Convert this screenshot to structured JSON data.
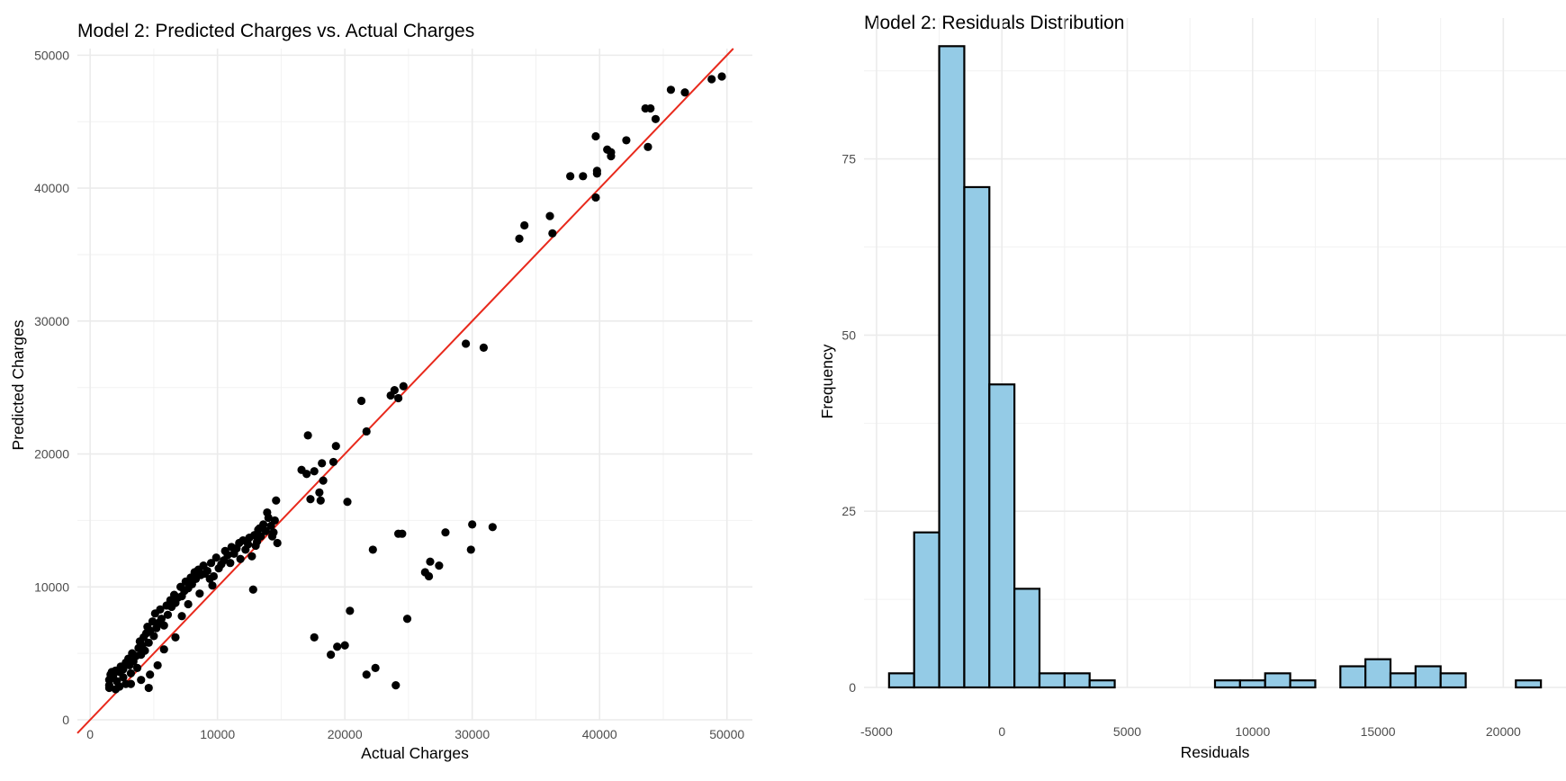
{
  "chart_data": [
    {
      "type": "scatter",
      "title": "Model 2: Predicted Charges vs. Actual Charges",
      "xlabel": "Actual Charges",
      "ylabel": "Predicted Charges",
      "xlim": [
        -1000,
        52000
      ],
      "ylim": [
        0,
        50500
      ],
      "x_ticks": [
        "0",
        "10000",
        "20000",
        "30000",
        "40000",
        "50000"
      ],
      "y_ticks": [
        "0",
        "10000",
        "20000",
        "30000",
        "40000",
        "50000"
      ],
      "grid": true,
      "reference_line": {
        "type": "y = x",
        "color": "#e8291c"
      },
      "point_color": "#000000",
      "points": [
        [
          1700,
          3600
        ],
        [
          1600,
          3400
        ],
        [
          1500,
          3000
        ],
        [
          1500,
          2600
        ],
        [
          1800,
          3300
        ],
        [
          2000,
          3700
        ],
        [
          2100,
          2900
        ],
        [
          2300,
          3600
        ],
        [
          2400,
          4000
        ],
        [
          2600,
          3800
        ],
        [
          2600,
          3200
        ],
        [
          2800,
          4300
        ],
        [
          2800,
          2700
        ],
        [
          3000,
          4600
        ],
        [
          3100,
          4100
        ],
        [
          3200,
          3500
        ],
        [
          3300,
          5000
        ],
        [
          3400,
          4400
        ],
        [
          3600,
          4800
        ],
        [
          3700,
          3900
        ],
        [
          3800,
          5400
        ],
        [
          3900,
          5900
        ],
        [
          4000,
          4900
        ],
        [
          4100,
          5600
        ],
        [
          4200,
          6200
        ],
        [
          4300,
          5200
        ],
        [
          4400,
          6500
        ],
        [
          4500,
          7000
        ],
        [
          4600,
          5800
        ],
        [
          4700,
          6700
        ],
        [
          4900,
          7400
        ],
        [
          5000,
          6300
        ],
        [
          5100,
          8000
        ],
        [
          5200,
          6900
        ],
        [
          5400,
          7300
        ],
        [
          5500,
          8300
        ],
        [
          5600,
          7600
        ],
        [
          5800,
          7100
        ],
        [
          6000,
          8600
        ],
        [
          6100,
          7900
        ],
        [
          6300,
          9000
        ],
        [
          6400,
          8500
        ],
        [
          6600,
          9400
        ],
        [
          6700,
          8800
        ],
        [
          6900,
          9200
        ],
        [
          7100,
          10000
        ],
        [
          7200,
          9300
        ],
        [
          7400,
          9700
        ],
        [
          7500,
          10400
        ],
        [
          7700,
          9900
        ],
        [
          7900,
          10700
        ],
        [
          8000,
          10200
        ],
        [
          8200,
          11100
        ],
        [
          8300,
          10600
        ],
        [
          8500,
          11300
        ],
        [
          8700,
          10900
        ],
        [
          8900,
          11600
        ],
        [
          9000,
          11000
        ],
        [
          9200,
          11200
        ],
        [
          9400,
          10600
        ],
        [
          9500,
          11800
        ],
        [
          9700,
          10800
        ],
        [
          9900,
          12200
        ],
        [
          10100,
          11400
        ],
        [
          10300,
          11700
        ],
        [
          10500,
          12000
        ],
        [
          10600,
          12700
        ],
        [
          10800,
          12400
        ],
        [
          11000,
          11800
        ],
        [
          11100,
          13000
        ],
        [
          11300,
          12500
        ],
        [
          11500,
          12900
        ],
        [
          11700,
          13300
        ],
        [
          11800,
          12100
        ],
        [
          12000,
          13500
        ],
        [
          12200,
          12800
        ],
        [
          12400,
          13200
        ],
        [
          12500,
          13700
        ],
        [
          12700,
          12300
        ],
        [
          12900,
          13900
        ],
        [
          13100,
          13400
        ],
        [
          13200,
          14300
        ],
        [
          13400,
          13800
        ],
        [
          13600,
          14700
        ],
        [
          13800,
          14200
        ],
        [
          14000,
          15200
        ],
        [
          14200,
          14600
        ],
        [
          14400,
          14100
        ],
        [
          14600,
          16500
        ],
        [
          14700,
          13300
        ],
        [
          1500,
          2400
        ],
        [
          2000,
          2300
        ],
        [
          2300,
          2500
        ],
        [
          3200,
          2700
        ],
        [
          4000,
          3000
        ],
        [
          4600,
          2400
        ],
        [
          4700,
          3400
        ],
        [
          5300,
          4100
        ],
        [
          5800,
          5300
        ],
        [
          6700,
          6200
        ],
        [
          7200,
          7800
        ],
        [
          7700,
          8700
        ],
        [
          8600,
          9500
        ],
        [
          9600,
          10100
        ],
        [
          12800,
          9800
        ],
        [
          13300,
          14400
        ],
        [
          13900,
          15600
        ],
        [
          14300,
          13800
        ],
        [
          14500,
          15000
        ],
        [
          13000,
          13100
        ],
        [
          17100,
          21400
        ],
        [
          16600,
          18800
        ],
        [
          17000,
          18500
        ],
        [
          17600,
          18700
        ],
        [
          17300,
          16600
        ],
        [
          18000,
          17100
        ],
        [
          18200,
          19300
        ],
        [
          18300,
          18000
        ],
        [
          18100,
          16500
        ],
        [
          19100,
          19400
        ],
        [
          19300,
          20600
        ],
        [
          20200,
          16400
        ],
        [
          21300,
          24000
        ],
        [
          21700,
          21700
        ],
        [
          23600,
          24400
        ],
        [
          23900,
          24800
        ],
        [
          24200,
          24200
        ],
        [
          24600,
          25100
        ],
        [
          29500,
          28300
        ],
        [
          30900,
          28000
        ],
        [
          17600,
          6200
        ],
        [
          18900,
          4900
        ],
        [
          19400,
          5500
        ],
        [
          20000,
          5600
        ],
        [
          20400,
          8200
        ],
        [
          21700,
          3400
        ],
        [
          22200,
          12800
        ],
        [
          22400,
          3900
        ],
        [
          24000,
          2600
        ],
        [
          24200,
          14000
        ],
        [
          24500,
          14000
        ],
        [
          24900,
          7600
        ],
        [
          26300,
          11100
        ],
        [
          26600,
          10800
        ],
        [
          26700,
          11900
        ],
        [
          27400,
          11600
        ],
        [
          27900,
          14100
        ],
        [
          29900,
          12800
        ],
        [
          30000,
          14700
        ],
        [
          31600,
          14500
        ],
        [
          33700,
          36200
        ],
        [
          34100,
          37200
        ],
        [
          36100,
          37900
        ],
        [
          36300,
          36600
        ],
        [
          37700,
          40900
        ],
        [
          38700,
          40900
        ],
        [
          39700,
          39300
        ],
        [
          39800,
          41100
        ],
        [
          39800,
          41300
        ],
        [
          39700,
          43900
        ],
        [
          40600,
          42900
        ],
        [
          40900,
          42700
        ],
        [
          40900,
          42400
        ],
        [
          42100,
          43600
        ],
        [
          43600,
          46000
        ],
        [
          43800,
          43100
        ],
        [
          44000,
          46000
        ],
        [
          44400,
          45200
        ],
        [
          45600,
          47400
        ],
        [
          46700,
          47200
        ],
        [
          48800,
          48200
        ],
        [
          49600,
          48400
        ]
      ]
    },
    {
      "type": "bar",
      "subtype": "histogram",
      "title": "Model 2: Residuals Distribution",
      "xlabel": "Residuals",
      "ylabel": "Frequency",
      "bin_width": 1000,
      "xlim": [
        -5500,
        22500
      ],
      "ylim": [
        0,
        95
      ],
      "x_ticks": [
        "-5000",
        "0",
        "5000",
        "10000",
        "15000",
        "20000"
      ],
      "y_ticks": [
        "0",
        "25",
        "50",
        "75"
      ],
      "grid": true,
      "fill_color": "#94cbe6",
      "edge_color": "#000000",
      "bin_centers": [
        -4000,
        -3000,
        -2000,
        -1000,
        0,
        1000,
        2000,
        3000,
        4000,
        5000,
        6000,
        7000,
        8000,
        9000,
        10000,
        11000,
        12000,
        13000,
        14000,
        15000,
        16000,
        17000,
        18000,
        19000,
        20000,
        21000
      ],
      "values": [
        2,
        22,
        91,
        71,
        43,
        14,
        2,
        2,
        1,
        0,
        0,
        0,
        0,
        1,
        1,
        2,
        1,
        0,
        3,
        4,
        2,
        3,
        2,
        0,
        0,
        1
      ]
    }
  ]
}
